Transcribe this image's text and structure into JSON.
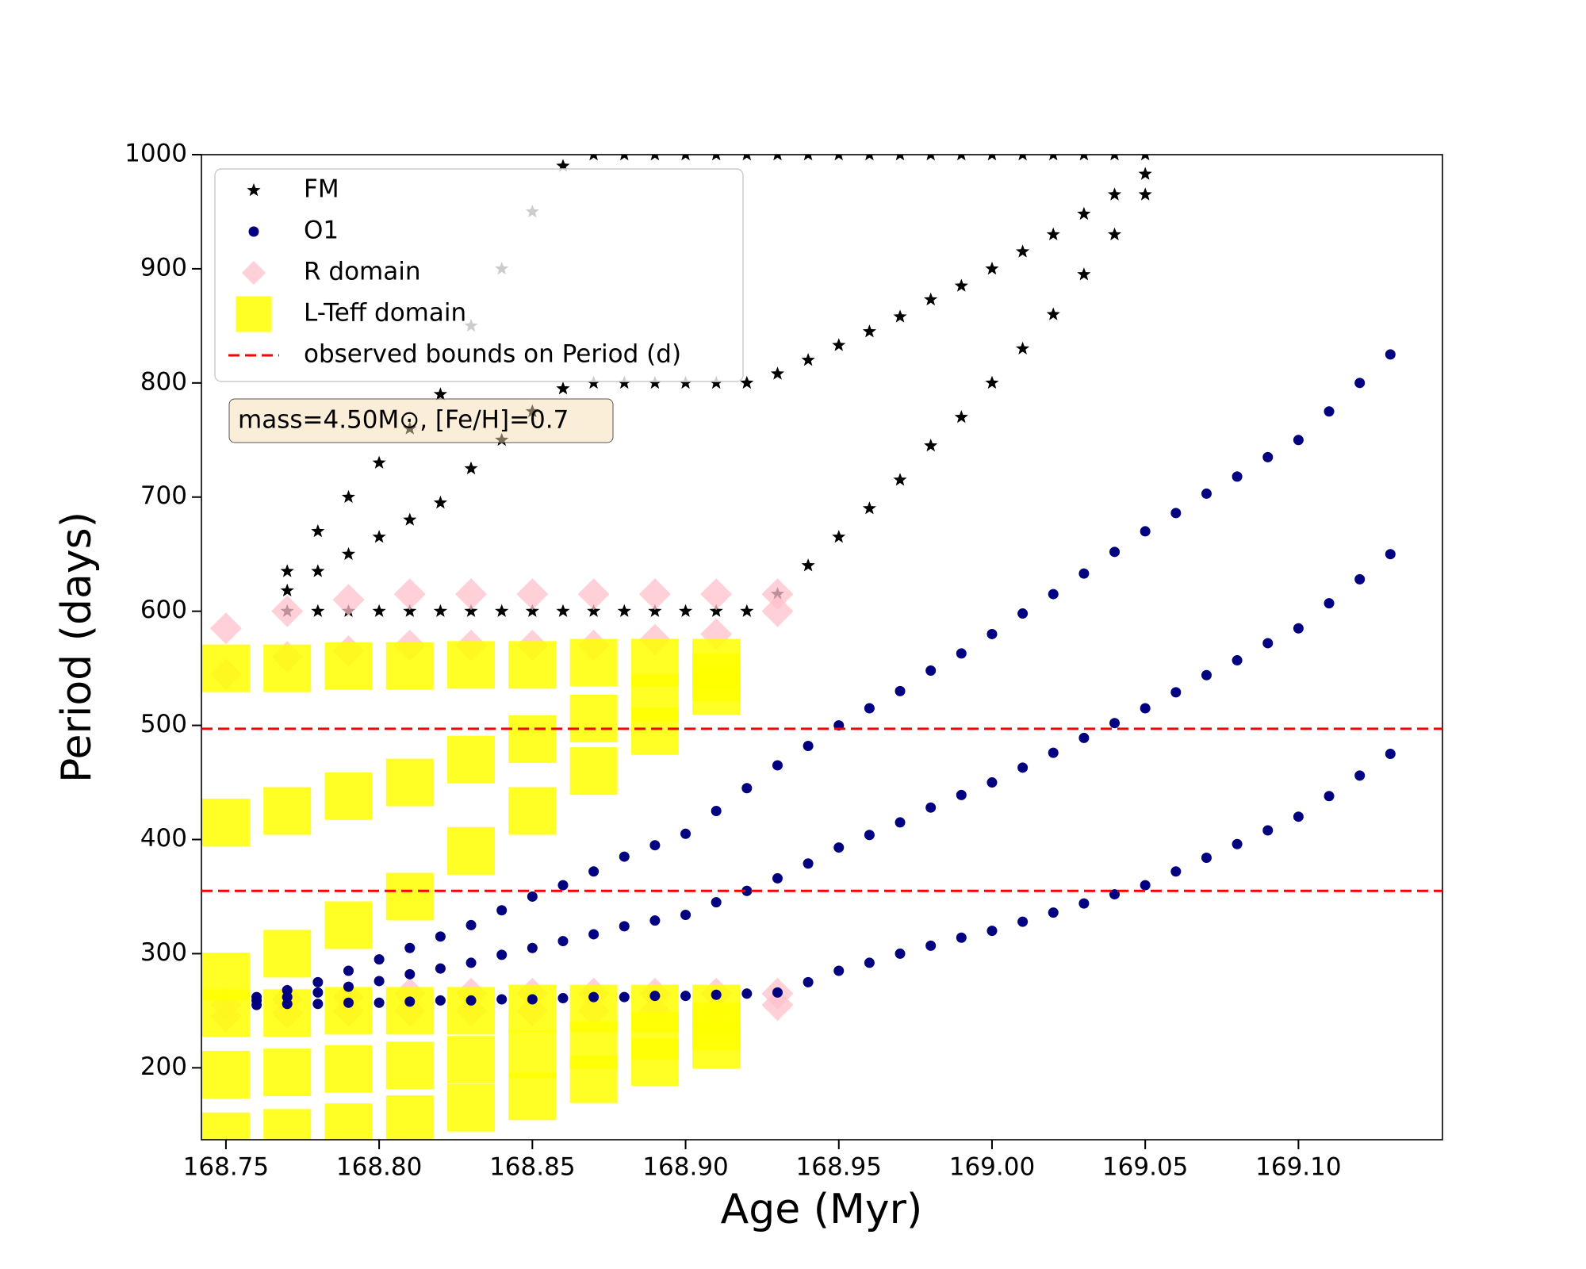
{
  "chart_data": {
    "type": "scatter",
    "xlabel": "Age (Myr)",
    "ylabel": "Period (days)",
    "annotation": "mass=4.50M⊙, [Fe/H]=0.7",
    "xlim": [
      168.742,
      169.147
    ],
    "ylim": [
      137,
      1000
    ],
    "xticks": [
      168.75,
      {
        "value": 168.8,
        "label": "168.80"
      },
      168.85,
      {
        "value": 168.9,
        "label": "168.90"
      },
      168.95,
      {
        "value": 169,
        "label": "169.00"
      },
      169.05,
      {
        "value": 169.1,
        "label": "169.10"
      }
    ],
    "yticks": [
      200,
      300,
      400,
      500,
      600,
      700,
      800,
      900,
      1000
    ],
    "legend": "upper left",
    "series": [
      {
        "name": "FM",
        "color": "#000000",
        "marker": "star",
        "x": [
          168.77,
          168.78,
          168.79,
          168.8,
          168.81,
          168.82,
          168.83,
          168.84,
          168.85,
          168.86,
          168.87,
          168.88,
          168.89,
          168.9,
          168.91,
          168.92,
          168.93,
          168.94,
          168.95,
          168.96,
          168.97,
          168.98,
          168.99,
          169,
          169.01,
          169.02,
          169.03,
          169.04,
          169.05,
          168.77,
          168.78,
          168.79,
          168.8,
          168.81,
          168.82,
          168.83,
          168.84,
          168.85,
          168.86,
          168.87,
          168.88,
          168.89,
          168.9,
          168.91,
          168.92,
          168.93,
          168.94,
          168.95,
          168.96,
          168.97,
          168.98,
          168.99,
          169,
          169.01,
          169.02,
          169.03,
          169.04,
          169.05,
          168.77,
          168.78,
          168.79,
          168.8,
          168.81,
          168.82,
          168.83,
          168.84,
          168.85,
          168.86,
          168.87,
          168.88,
          168.89,
          168.9,
          168.91,
          168.92,
          168.93,
          168.94,
          168.95,
          168.96,
          168.97,
          168.98,
          168.99,
          169,
          169.01,
          169.02,
          169.03,
          169.04,
          169.05
        ],
        "values": [
          600,
          600,
          600,
          600,
          600,
          600,
          600,
          600,
          600,
          600,
          600,
          600,
          600,
          600,
          600,
          600,
          615,
          640,
          665,
          690,
          715,
          745,
          770,
          800,
          830,
          860,
          895,
          930,
          965,
          618,
          635,
          650,
          665,
          680,
          695,
          725,
          750,
          775,
          795,
          800,
          800,
          800,
          800,
          800,
          800,
          808,
          820,
          833,
          845,
          858,
          873,
          885,
          900,
          915,
          930,
          948,
          965,
          983,
          635,
          670,
          700,
          730,
          760,
          790,
          850,
          900,
          950,
          990,
          1000,
          1000,
          1000,
          1000,
          1000,
          1000,
          1000,
          1000,
          1000,
          1000,
          1000,
          1000,
          1000,
          1000,
          1000,
          1000,
          1000,
          1000,
          1000
        ]
      },
      {
        "name": "O1",
        "color": "#000080",
        "marker": "circle",
        "x": [
          168.76,
          168.77,
          168.78,
          168.79,
          168.8,
          168.81,
          168.82,
          168.83,
          168.84,
          168.85,
          168.86,
          168.87,
          168.88,
          168.89,
          168.9,
          168.91,
          168.92,
          168.93,
          168.94,
          168.95,
          168.96,
          168.97,
          168.98,
          168.99,
          169,
          169.01,
          169.02,
          169.03,
          169.04,
          169.05,
          169.06,
          169.07,
          169.08,
          169.09,
          169.1,
          169.11,
          169.12,
          169.13,
          168.76,
          168.77,
          168.78,
          168.79,
          168.8,
          168.81,
          168.82,
          168.83,
          168.84,
          168.85,
          168.86,
          168.87,
          168.88,
          168.89,
          168.9,
          168.91,
          168.92,
          168.93,
          168.94,
          168.95,
          168.96,
          168.97,
          168.98,
          168.99,
          169,
          169.01,
          169.02,
          169.03,
          169.04,
          169.05,
          169.06,
          169.07,
          169.08,
          169.09,
          169.1,
          169.11,
          169.12,
          169.13,
          168.76,
          168.77,
          168.78,
          168.79,
          168.8,
          168.81,
          168.82,
          168.83,
          168.84,
          168.85,
          168.86,
          168.87,
          168.88,
          168.89,
          168.9,
          168.91,
          168.92,
          168.93,
          168.94,
          168.95,
          168.96,
          168.97,
          168.98,
          168.99,
          169,
          169.01,
          169.02,
          169.03,
          169.04,
          169.05,
          169.06,
          169.07,
          169.08,
          169.09,
          169.1,
          169.11,
          169.12,
          169.13
        ],
        "values": [
          255,
          256,
          256,
          257,
          257,
          258,
          259,
          259,
          260,
          260,
          261,
          262,
          262,
          263,
          263,
          264,
          265,
          266,
          275,
          285,
          292,
          300,
          307,
          314,
          320,
          328,
          336,
          344,
          352,
          360,
          372,
          384,
          396,
          408,
          420,
          438,
          456,
          475,
          259,
          262,
          266,
          271,
          276,
          282,
          287,
          292,
          299,
          305,
          311,
          317,
          324,
          329,
          334,
          345,
          355,
          366,
          379,
          393,
          404,
          415,
          428,
          439,
          450,
          463,
          476,
          489,
          502,
          515,
          529,
          544,
          557,
          572,
          585,
          607,
          628,
          650,
          262,
          268,
          275,
          285,
          295,
          305,
          315,
          325,
          338,
          350,
          360,
          372,
          385,
          395,
          405,
          425,
          445,
          465,
          482,
          500,
          515,
          530,
          548,
          563,
          580,
          598,
          615,
          633,
          652,
          670,
          686,
          703,
          718,
          735,
          750,
          775,
          800,
          825
        ]
      },
      {
        "name": "R domain",
        "color": "#ffc0cb",
        "marker": "diamond",
        "x": [
          168.75,
          168.77,
          168.79,
          168.81,
          168.83,
          168.85,
          168.87,
          168.89,
          168.91,
          168.93,
          168.75,
          168.77,
          168.79,
          168.81,
          168.83,
          168.85,
          168.87,
          168.89,
          168.91,
          168.93,
          168.75,
          168.77,
          168.79,
          168.81,
          168.83,
          168.85,
          168.87,
          168.89,
          168.91,
          168.93,
          168.75,
          168.77,
          168.79,
          168.81,
          168.83,
          168.85,
          168.87,
          168.89,
          168.91,
          168.93
        ],
        "values": [
          545,
          560,
          565,
          570,
          570,
          570,
          570,
          575,
          580,
          600,
          585,
          600,
          610,
          615,
          615,
          615,
          615,
          615,
          615,
          615,
          245,
          248,
          250,
          250,
          250,
          250,
          250,
          250,
          250,
          255,
          255,
          260,
          262,
          265,
          265,
          265,
          265,
          265,
          265,
          265
        ]
      },
      {
        "name": "L-Teff domain",
        "color": "#ffff00",
        "marker": "square",
        "x": [
          168.75,
          168.77,
          168.79,
          168.81,
          168.83,
          168.85,
          168.87,
          168.89,
          168.91,
          168.75,
          168.77,
          168.79,
          168.81,
          168.83,
          168.85,
          168.87,
          168.89,
          168.91,
          168.75,
          168.77,
          168.79,
          168.81,
          168.83,
          168.85,
          168.87,
          168.89,
          168.91,
          168.75,
          168.77,
          168.79,
          168.81,
          168.83,
          168.85,
          168.87,
          168.89,
          168.91,
          168.75,
          168.77,
          168.79,
          168.81,
          168.83,
          168.85,
          168.87,
          168.89,
          168.91,
          168.75,
          168.77,
          168.79,
          168.81,
          168.83,
          168.85,
          168.87,
          168.89,
          168.91
        ],
        "values": [
          140,
          143,
          148,
          155,
          165,
          175,
          190,
          205,
          220,
          194,
          196,
          199,
          202,
          207,
          212,
          220,
          228,
          236,
          248,
          248,
          250,
          250,
          250,
          252,
          252,
          252,
          252,
          280,
          300,
          325,
          350,
          390,
          425,
          460,
          495,
          530,
          415,
          425,
          438,
          450,
          470,
          488,
          506,
          524,
          542,
          550,
          550,
          552,
          552,
          553,
          553,
          555,
          555,
          555
        ]
      }
    ],
    "hlines": {
      "name": "observed bounds on Period (d)",
      "color": "#ff0000",
      "values": [
        497,
        355
      ]
    }
  }
}
